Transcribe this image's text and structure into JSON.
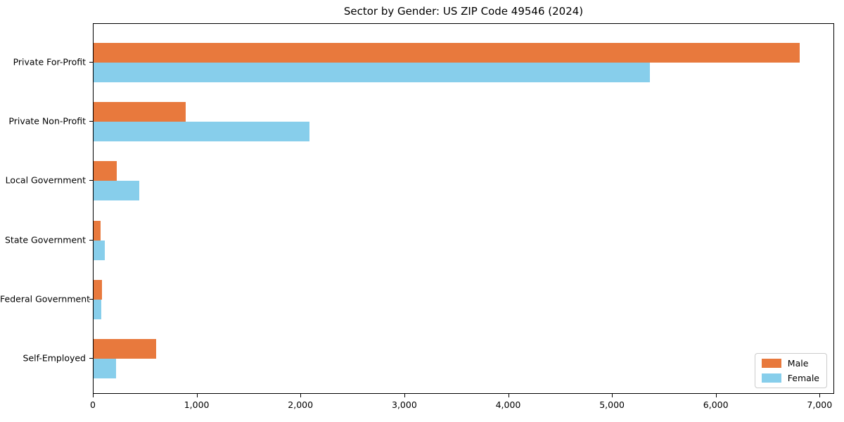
{
  "title": "Sector by Gender: US ZIP Code 49546 (2024)",
  "chart_data": {
    "type": "bar",
    "orientation": "horizontal",
    "title": "Sector by Gender: US ZIP Code 49546 (2024)",
    "categories": [
      "Private For-Profit",
      "Private Non-Profit",
      "Local Government",
      "State Government",
      "Federal Government",
      "Self-Employed"
    ],
    "series": [
      {
        "name": "Male",
        "color": "#e8793d",
        "values": [
          6800,
          890,
          220,
          70,
          80,
          600
        ]
      },
      {
        "name": "Female",
        "color": "#87ceeb",
        "values": [
          5360,
          2080,
          440,
          110,
          75,
          215
        ]
      }
    ],
    "xlabel": "",
    "ylabel": "",
    "xlim": [
      0,
      7140
    ],
    "xticks": [
      0,
      1000,
      2000,
      3000,
      4000,
      5000,
      6000,
      7000
    ],
    "xtick_labels": [
      "0",
      "1,000",
      "2,000",
      "3,000",
      "4,000",
      "5,000",
      "6,000",
      "7,000"
    ],
    "grid": false,
    "legend": {
      "position": "lower right"
    }
  }
}
